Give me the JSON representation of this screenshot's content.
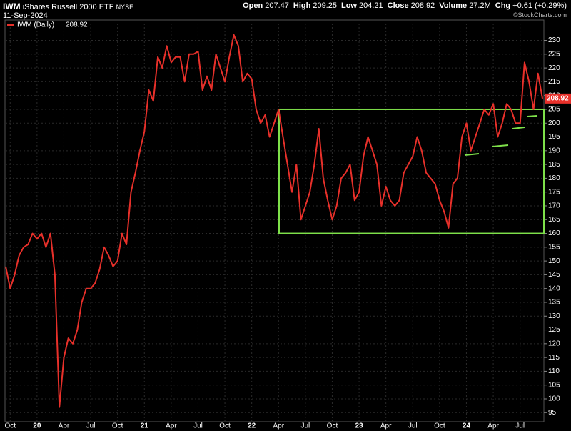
{
  "header": {
    "symbol": "IWM",
    "name": "iShares Russell 2000 ETF",
    "exchange": "NYSE",
    "date": "11-Sep-2024",
    "quote": [
      {
        "label": "Open",
        "value": 207.47
      },
      {
        "label": "High",
        "value": 209.25
      },
      {
        "label": "Low",
        "value": 204.21
      },
      {
        "label": "Close",
        "value": 208.92
      },
      {
        "label": "Volume",
        "value": "27.2M"
      },
      {
        "label": "Chg",
        "value": "+0.61 (+0.29%)"
      }
    ],
    "credit": "©StockCharts.com"
  },
  "chart_data": {
    "type": "line",
    "categories": [
      null,
      "Oct",
      null,
      null,
      null,
      null,
      null,
      "20",
      null,
      null,
      null,
      null,
      null,
      "Apr",
      null,
      null,
      null,
      null,
      null,
      "Jul",
      null,
      null,
      null,
      null,
      null,
      "Oct",
      null,
      null,
      null,
      null,
      null,
      "21",
      null,
      null,
      null,
      null,
      null,
      "Apr",
      null,
      null,
      null,
      null,
      null,
      "Jul",
      null,
      null,
      null,
      null,
      null,
      "Oct",
      null,
      null,
      null,
      null,
      null,
      "22",
      null,
      null,
      null,
      null,
      null,
      "Apr",
      null,
      null,
      null,
      null,
      null,
      "Jul",
      null,
      null,
      null,
      null,
      null,
      "Oct",
      null,
      null,
      null,
      null,
      null,
      "23",
      null,
      null,
      null,
      null,
      null,
      "Apr",
      null,
      null,
      null,
      null,
      null,
      "Jul",
      null,
      null,
      null,
      null,
      null,
      "Oct",
      null,
      null,
      null,
      null,
      null,
      "24",
      null,
      null,
      null,
      null,
      null,
      "Apr",
      null,
      null,
      null,
      null,
      null,
      "Jul",
      null,
      null,
      null,
      null,
      null
    ],
    "series": [
      {
        "name": "IWM (Daily)",
        "color": "#e8302a",
        "values": [
          148,
          140,
          145,
          152,
          155,
          156,
          160,
          158,
          160,
          155,
          160,
          145,
          97,
          115,
          122,
          120,
          125,
          135,
          140,
          140,
          142,
          147,
          155,
          152,
          148,
          150,
          160,
          156,
          175,
          182,
          190,
          197,
          212,
          208,
          224,
          220,
          228,
          222,
          224,
          224,
          215,
          225,
          225,
          226,
          212,
          217,
          212,
          225,
          220,
          215,
          224,
          232,
          228,
          215,
          218,
          216,
          205,
          200,
          203,
          195,
          200,
          205,
          195,
          185,
          175,
          185,
          165,
          170,
          175,
          185,
          198,
          180,
          172,
          165,
          170,
          180,
          182,
          185,
          172,
          175,
          188,
          195,
          190,
          185,
          170,
          177,
          172,
          170,
          172,
          182,
          185,
          188,
          195,
          190,
          182,
          180,
          178,
          172,
          168,
          162,
          178,
          180,
          195,
          200,
          190,
          195,
          200,
          205,
          203,
          207,
          195,
          200,
          207,
          205,
          200,
          200,
          222,
          215,
          205,
          218,
          208.92
        ]
      }
    ],
    "ylim": [
      91.7,
      237.4
    ],
    "yticks": [
      95,
      100,
      105,
      110,
      115,
      120,
      125,
      130,
      135,
      140,
      145,
      150,
      155,
      160,
      165,
      170,
      175,
      180,
      185,
      190,
      195,
      200,
      205,
      210,
      215,
      220,
      225,
      230
    ],
    "grid": true,
    "box": {
      "ylim": [
        160,
        205
      ],
      "color": "#7ee04a"
    }
  }
}
